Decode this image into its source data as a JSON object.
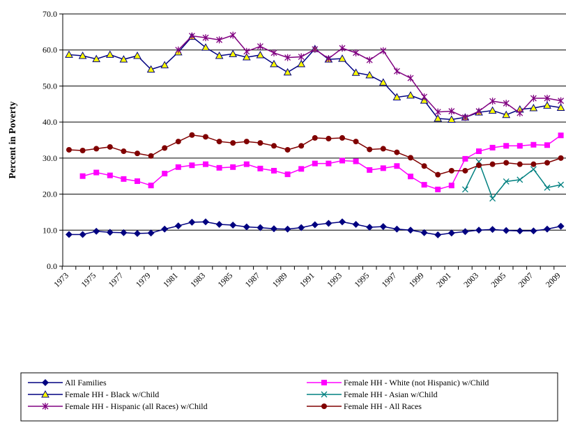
{
  "chart_data": {
    "type": "line",
    "ylabel": "Percent in Poverty",
    "categories": [
      "1973",
      null,
      "1975",
      null,
      "1977",
      null,
      "1979",
      null,
      "1981",
      null,
      "1983",
      null,
      "1985",
      null,
      "1987",
      null,
      "1989",
      null,
      "1991",
      null,
      "1993",
      null,
      "1995",
      null,
      "1997",
      null,
      "1999",
      null,
      "2001",
      null,
      "2003",
      null,
      "2005",
      null,
      "2007",
      null,
      "2009"
    ],
    "ylim": [
      0,
      70
    ],
    "yticks": [
      {
        "value": 0,
        "label": "0.0"
      },
      {
        "value": 10,
        "label": "10.0"
      },
      {
        "value": 20,
        "label": "20.0"
      },
      {
        "value": 30,
        "label": "30.0"
      },
      {
        "value": 40,
        "label": "40.0"
      },
      {
        "value": 50,
        "label": "50.0"
      },
      {
        "value": 60,
        "label": "60.0"
      },
      {
        "value": 70,
        "label": "70.0"
      }
    ],
    "grid": true,
    "series": [
      {
        "name": "All Families",
        "color": "#000080",
        "marker": "diamond",
        "values": [
          8.8,
          8.8,
          9.7,
          9.4,
          9.3,
          9.1,
          9.2,
          10.3,
          11.2,
          12.2,
          12.3,
          11.6,
          11.4,
          10.9,
          10.7,
          10.4,
          10.3,
          10.7,
          11.5,
          11.9,
          12.3,
          11.6,
          10.8,
          11.0,
          10.3,
          10.0,
          9.3,
          8.7,
          9.2,
          9.6,
          10.0,
          10.2,
          9.9,
          9.8,
          9.8,
          10.3,
          11.1
        ]
      },
      {
        "name": "Female HH - White (not Hispanic) w/Child",
        "color": "#ff00ff",
        "marker": "square",
        "values": [
          null,
          25.0,
          26.0,
          25.2,
          24.2,
          23.6,
          22.4,
          25.7,
          27.5,
          28.0,
          28.3,
          27.3,
          27.5,
          28.3,
          27.1,
          26.5,
          25.5,
          27.0,
          28.5,
          28.5,
          29.3,
          29.1,
          26.7,
          27.2,
          27.8,
          24.9,
          22.6,
          21.3,
          22.4,
          29.8,
          31.9,
          32.9,
          33.4,
          33.4,
          33.7,
          33.6,
          36.3
        ]
      },
      {
        "name": "Female HH - Black w/Child",
        "color": "#000080",
        "marker": "triangle",
        "values": [
          58.7,
          58.4,
          57.5,
          58.7,
          57.4,
          58.4,
          54.6,
          55.8,
          59.4,
          63.7,
          60.7,
          58.4,
          58.9,
          58.0,
          58.6,
          56.1,
          53.8,
          56.1,
          60.3,
          57.4,
          57.6,
          53.7,
          53.0,
          51.0,
          46.9,
          47.4,
          46.0,
          41.0,
          40.7,
          41.3,
          42.7,
          43.2,
          42.0,
          43.5,
          43.9,
          44.6,
          44.0
        ]
      },
      {
        "name": "Female HH - Asian w/Child",
        "color": "#008080",
        "marker": "x",
        "values": [
          null,
          null,
          null,
          null,
          null,
          null,
          null,
          null,
          null,
          null,
          null,
          null,
          null,
          null,
          null,
          null,
          null,
          null,
          null,
          null,
          null,
          null,
          null,
          null,
          null,
          null,
          null,
          null,
          null,
          21.3,
          29.0,
          18.8,
          23.5,
          24.0,
          26.9,
          21.8,
          22.6
        ]
      },
      {
        "name": "Female HH - Hispanic (all Races) w/Child",
        "color": "#800080",
        "marker": "star",
        "values": [
          null,
          null,
          null,
          null,
          null,
          null,
          null,
          null,
          60.0,
          63.9,
          63.4,
          62.8,
          64.1,
          59.6,
          61.0,
          59.2,
          57.9,
          58.1,
          60.2,
          57.6,
          60.5,
          59.2,
          57.2,
          59.8,
          54.1,
          52.2,
          47.0,
          42.8,
          43.0,
          41.3,
          43.0,
          45.8,
          45.2,
          42.5,
          46.6,
          46.6,
          45.9
        ]
      },
      {
        "name": "Female HH - All Races",
        "color": "#800000",
        "marker": "circle",
        "values": [
          32.3,
          32.1,
          32.6,
          33.1,
          31.9,
          31.3,
          30.6,
          32.8,
          34.6,
          36.4,
          35.9,
          34.6,
          34.2,
          34.6,
          34.2,
          33.4,
          32.3,
          33.4,
          35.6,
          35.4,
          35.6,
          34.6,
          32.4,
          32.6,
          31.6,
          30.1,
          27.8,
          25.4,
          26.5,
          26.5,
          28.0,
          28.3,
          28.7,
          28.3,
          28.3,
          28.7,
          30.0
        ]
      }
    ]
  }
}
